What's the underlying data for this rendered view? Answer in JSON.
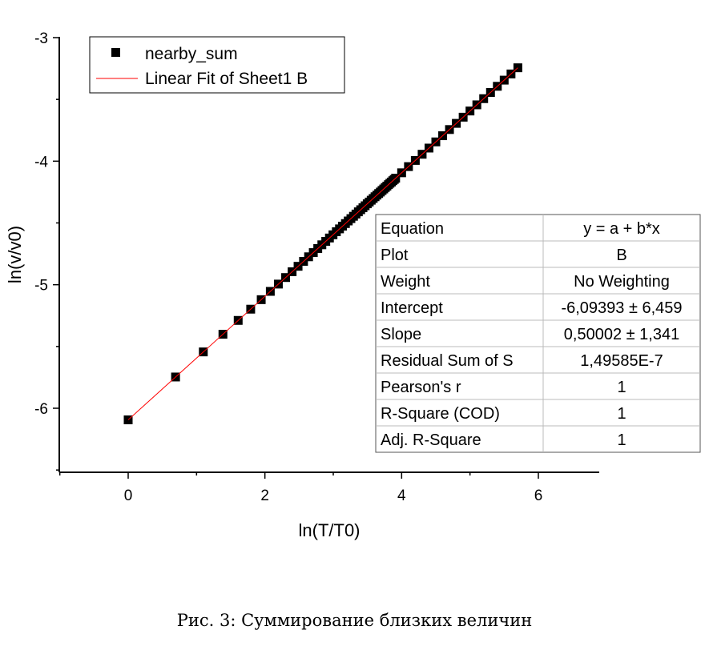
{
  "chart_data": {
    "type": "scatter",
    "xlabel": "ln(T/T0)",
    "ylabel": "ln(v/v0)",
    "xlim": [
      -1,
      7
    ],
    "ylim": [
      -6.5,
      -3
    ],
    "x_ticks": [
      0,
      2,
      4,
      6
    ],
    "y_ticks": [
      -6,
      -5,
      -4,
      -3
    ],
    "grid": false,
    "legend_position": "top-left",
    "series": [
      {
        "name": "nearby_sum",
        "marker": "square",
        "color": "#000000",
        "x": [
          0,
          0.693,
          1.099,
          1.386,
          1.609,
          1.792,
          1.946,
          2.079,
          2.197,
          2.303,
          2.398,
          2.485,
          2.565,
          2.639,
          2.708,
          2.773,
          2.833,
          2.89,
          2.944,
          2.996,
          3.045,
          3.091,
          3.135,
          3.178,
          3.219,
          3.258,
          3.296,
          3.332,
          3.367,
          3.401,
          3.434,
          3.466,
          3.497,
          3.526,
          3.555,
          3.584,
          3.611,
          3.638,
          3.664,
          3.689,
          3.714,
          3.738,
          3.761,
          3.784,
          3.807,
          3.829,
          3.85,
          3.871,
          3.892,
          3.912,
          4.0,
          4.1,
          4.2,
          4.3,
          4.4,
          4.5,
          4.6,
          4.7,
          4.8,
          4.9,
          5.0,
          5.1,
          5.2,
          5.3,
          5.4,
          5.5,
          5.6,
          5.7
        ],
        "y": [
          -6.094,
          -5.747,
          -5.544,
          -5.401,
          -5.289,
          -5.198,
          -5.121,
          -5.054,
          -4.995,
          -4.942,
          -4.895,
          -4.851,
          -4.811,
          -4.774,
          -4.74,
          -4.707,
          -4.677,
          -4.649,
          -4.622,
          -4.596,
          -4.571,
          -4.548,
          -4.526,
          -4.505,
          -4.484,
          -4.465,
          -4.446,
          -4.428,
          -4.41,
          -4.393,
          -4.377,
          -4.361,
          -4.345,
          -4.331,
          -4.316,
          -4.302,
          -4.288,
          -4.275,
          -4.262,
          -4.25,
          -4.237,
          -4.225,
          -4.213,
          -4.202,
          -4.19,
          -4.179,
          -4.169,
          -4.158,
          -4.148,
          -4.138,
          -4.094,
          -4.044,
          -3.994,
          -3.944,
          -3.894,
          -3.844,
          -3.794,
          -3.744,
          -3.694,
          -3.644,
          -3.594,
          -3.544,
          -3.494,
          -3.444,
          -3.394,
          -3.344,
          -3.294,
          -3.244
        ]
      },
      {
        "name": "Linear Fit of Sheet1 B",
        "type": "line",
        "color": "#ff0000",
        "x": [
          0,
          5.7
        ],
        "y": [
          -6.094,
          -3.244
        ]
      }
    ],
    "stats_table": [
      [
        "Equation",
        "y = a + b*x"
      ],
      [
        "Plot",
        "B"
      ],
      [
        "Weight",
        "No Weighting"
      ],
      [
        "Intercept",
        "-6,09393 ± 6,459"
      ],
      [
        "Slope",
        "0,50002 ± 1,341"
      ],
      [
        "Residual Sum of S",
        "1,49585E-7"
      ],
      [
        "Pearson's r",
        "1"
      ],
      [
        "R-Square (COD)",
        "1"
      ],
      [
        "Adj. R-Square",
        "1"
      ]
    ]
  },
  "caption": "Рис. 3: Суммирование близких величин"
}
